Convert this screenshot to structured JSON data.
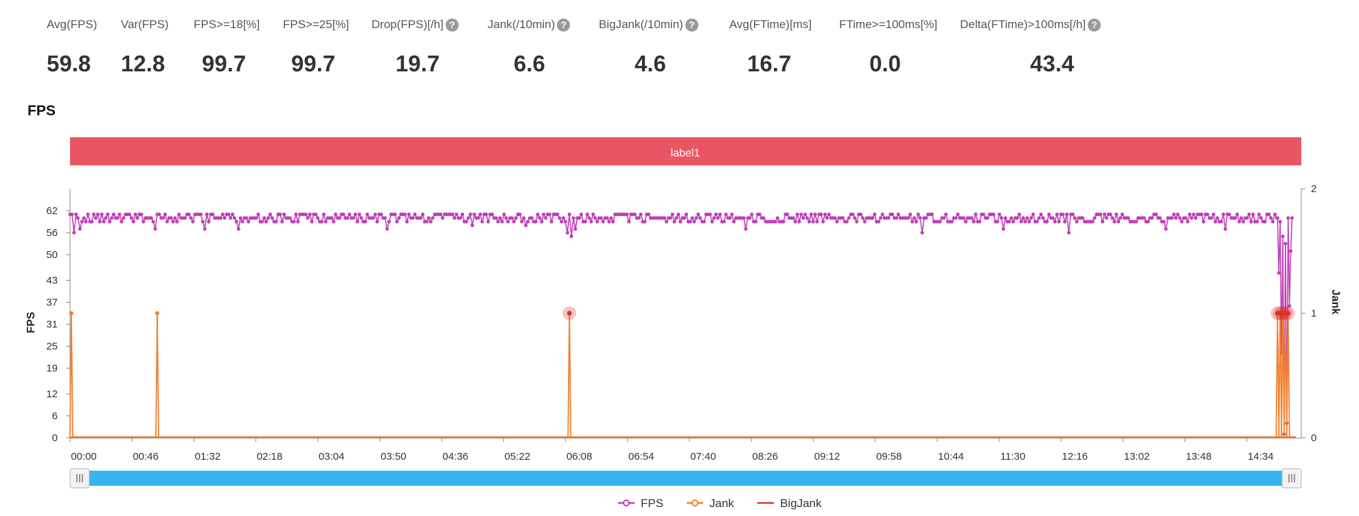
{
  "stats": [
    {
      "label": "Avg(FPS)",
      "value": "59.8",
      "help": false
    },
    {
      "label": "Var(FPS)",
      "value": "12.8",
      "help": false
    },
    {
      "label": "FPS>=18[%]",
      "value": "99.7",
      "help": false
    },
    {
      "label": "FPS>=25[%]",
      "value": "99.7",
      "help": false
    },
    {
      "label": "Drop(FPS)[/h]",
      "value": "19.7",
      "help": true
    },
    {
      "label": "Jank(/10min)",
      "value": "6.6",
      "help": true
    },
    {
      "label": "BigJank(/10min)",
      "value": "4.6",
      "help": true
    },
    {
      "label": "Avg(FTime)[ms]",
      "value": "16.7",
      "help": false
    },
    {
      "label": "FTime>=100ms[%]",
      "value": "0.0",
      "help": false
    },
    {
      "label": "Delta(FTime)>100ms[/h]",
      "value": "43.4",
      "help": true
    }
  ],
  "help_glyph": "?",
  "section_title": "FPS",
  "chart_data": {
    "type": "line",
    "band_label": "label1",
    "band_color": "#ea5565",
    "x_tick_labels": [
      "00:00",
      "00:46",
      "01:32",
      "02:18",
      "03:04",
      "03:50",
      "04:36",
      "05:22",
      "06:08",
      "06:54",
      "07:40",
      "08:26",
      "09:12",
      "09:58",
      "10:44",
      "11:30",
      "12:16",
      "13:02",
      "13:48",
      "14:34"
    ],
    "x_range_seconds": [
      0,
      932
    ],
    "y_left": {
      "label": "FPS",
      "ticks": [
        0,
        6,
        12,
        19,
        25,
        31,
        37,
        43,
        50,
        56,
        62
      ],
      "range": [
        0,
        68
      ]
    },
    "y_right": {
      "label": "Jank",
      "ticks": [
        0,
        1,
        2
      ],
      "range": [
        0,
        2
      ]
    },
    "fps_baseline": 60,
    "fps_dips": [
      {
        "t": 3,
        "v": 56
      },
      {
        "t": 8,
        "v": 57
      },
      {
        "t": 65,
        "v": 57
      },
      {
        "t": 67,
        "v": 52
      },
      {
        "t": 102,
        "v": 57
      },
      {
        "t": 128,
        "v": 57
      },
      {
        "t": 240,
        "v": 57
      },
      {
        "t": 305,
        "v": 58
      },
      {
        "t": 345,
        "v": 58
      },
      {
        "t": 377,
        "v": 56
      },
      {
        "t": 380,
        "v": 55
      },
      {
        "t": 383,
        "v": 57
      },
      {
        "t": 512,
        "v": 57
      },
      {
        "t": 553,
        "v": 57
      },
      {
        "t": 645,
        "v": 56
      },
      {
        "t": 707,
        "v": 57
      },
      {
        "t": 756,
        "v": 56
      },
      {
        "t": 820,
        "v": 56
      },
      {
        "t": 826,
        "v": 54
      },
      {
        "t": 830,
        "v": 57
      },
      {
        "t": 875,
        "v": 57
      },
      {
        "t": 883,
        "v": 56
      }
    ],
    "fps_end": [
      {
        "t": 914,
        "v": 60
      },
      {
        "t": 915,
        "v": 45
      },
      {
        "t": 916,
        "v": 59
      },
      {
        "t": 917,
        "v": 23
      },
      {
        "t": 918,
        "v": 55
      },
      {
        "t": 919,
        "v": 1
      },
      {
        "t": 920,
        "v": 53
      },
      {
        "t": 921,
        "v": 4
      },
      {
        "t": 922,
        "v": 60
      },
      {
        "t": 923,
        "v": 36
      },
      {
        "t": 924,
        "v": 51
      },
      {
        "t": 925,
        "v": 60
      }
    ],
    "series": [
      {
        "name": "FPS",
        "color": "#c040b8",
        "axis": "left"
      },
      {
        "name": "Jank",
        "color": "#f08030",
        "axis": "right",
        "events": [
          {
            "t": 1,
            "v": 1
          },
          {
            "t": 66,
            "v": 1
          },
          {
            "t": 378,
            "v": 1
          },
          {
            "t": 914,
            "v": 1
          },
          {
            "t": 916,
            "v": 1
          },
          {
            "t": 918,
            "v": 1
          },
          {
            "t": 920,
            "v": 1
          },
          {
            "t": 922,
            "v": 1
          }
        ]
      },
      {
        "name": "BigJank",
        "color": "#e03030",
        "axis": "right",
        "events": [
          {
            "t": 378,
            "v": 1
          },
          {
            "t": 914,
            "v": 1
          },
          {
            "t": 916,
            "v": 1
          },
          {
            "t": 918,
            "v": 1
          },
          {
            "t": 920,
            "v": 1
          },
          {
            "t": 922,
            "v": 1
          }
        ]
      }
    ],
    "zoom_range_fraction": [
      0,
      1
    ],
    "slider_color": "#36b4f2",
    "grid": false,
    "legend_position": "bottom-center"
  }
}
